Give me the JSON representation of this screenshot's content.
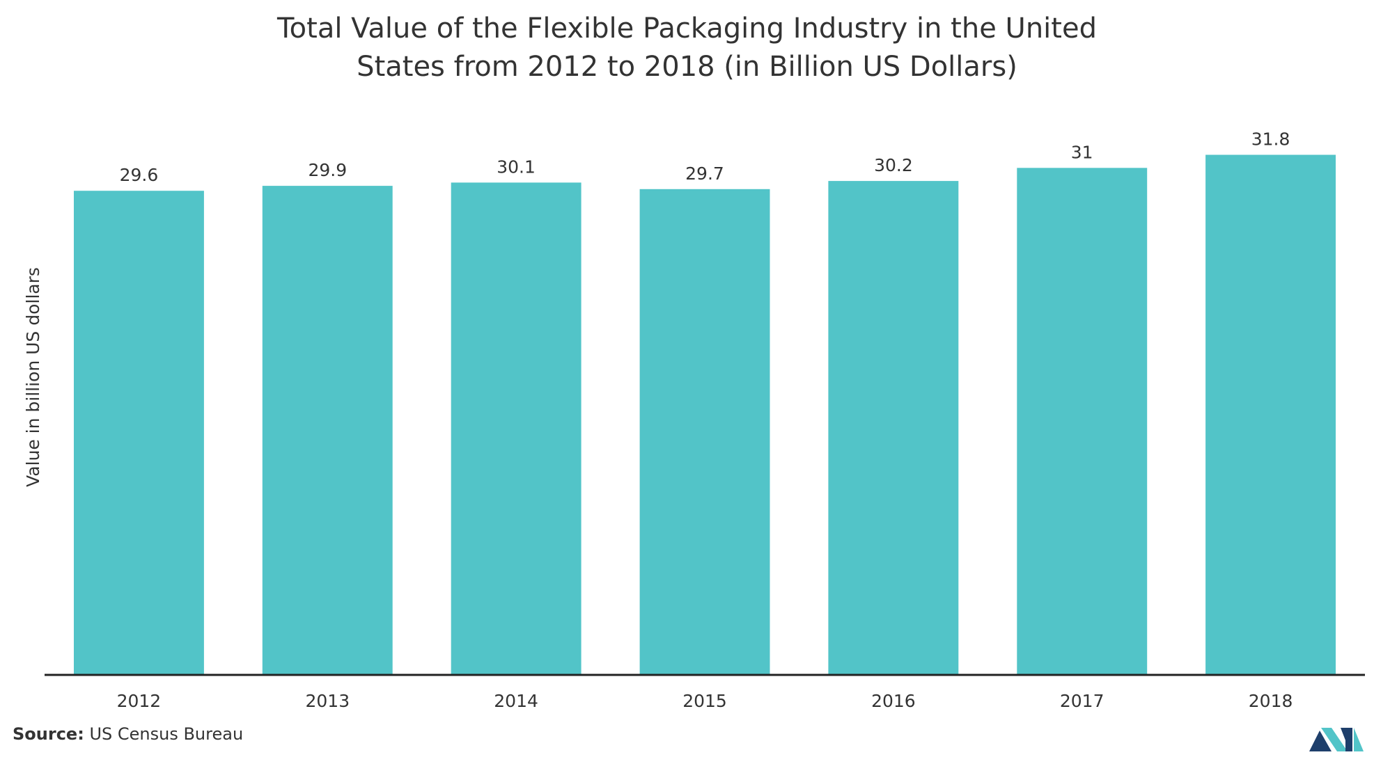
{
  "chart_data": {
    "type": "bar",
    "title": "Total Value of the Flexible Packaging Industry in the United States from 2012 to 2018 (in Billion US Dollars)",
    "title_lines": [
      "Total Value of the Flexible Packaging Industry in the United",
      "States from 2012 to 2018 (in Billion US Dollars)"
    ],
    "xlabel": "",
    "ylabel": "Value in billion US dollars",
    "categories": [
      "2012",
      "2013",
      "2014",
      "2015",
      "2016",
      "2017",
      "2018"
    ],
    "values": [
      29.6,
      29.9,
      30.1,
      29.7,
      30.2,
      31,
      31.8
    ],
    "data_labels": [
      "29.6",
      "29.9",
      "30.1",
      "29.7",
      "30.2",
      "31",
      "31.8"
    ],
    "ylim": [
      0,
      36.5
    ],
    "grid": false,
    "legend": "none",
    "bar_color": "#52c4c8",
    "axis_color": "#222222"
  },
  "source": {
    "label": "Source:",
    "text": "US Census Bureau"
  },
  "logo": {
    "icon": "mordor-intelligence-logo-icon",
    "colors": [
      "#1e3f6b",
      "#52c4c8"
    ]
  }
}
